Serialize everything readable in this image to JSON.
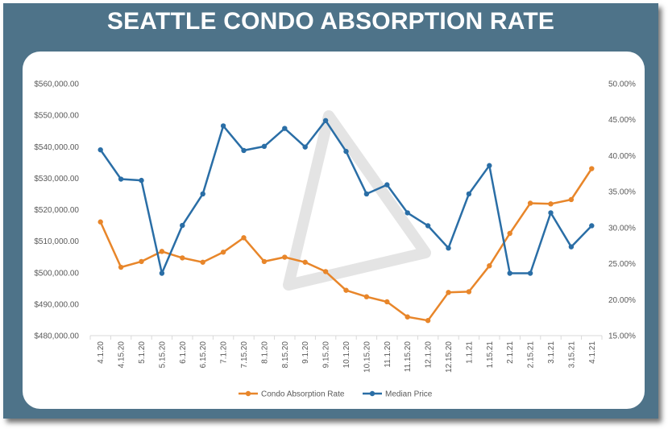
{
  "title": "SEATTLE CONDO ABSORPTION RATE",
  "chart_data": {
    "type": "line",
    "title": "",
    "categories": [
      "4.1.20",
      "4.15.20",
      "5.1.20",
      "5.15.20",
      "6.1.20",
      "6.15.20",
      "7.1.20",
      "7.15.20",
      "8.1.20",
      "8.15.20",
      "9.1.20",
      "9.15.20",
      "10.1.20",
      "10.15.20",
      "11.1.20",
      "11.15.20",
      "12.1.20",
      "12.15.20",
      "1.1.21",
      "1.15.21",
      "2.1.21",
      "2.15.21",
      "3.1.21",
      "3.15.21",
      "4.1.21"
    ],
    "left_axis": {
      "ylim": [
        480000,
        560000
      ],
      "ticks": [
        "$480,000.00",
        "$490,000.00",
        "$500,000.00",
        "$510,000.00",
        "$520,000.00",
        "$530,000.00",
        "$540,000.00",
        "$550,000.00",
        "$560,000.00"
      ]
    },
    "right_axis": {
      "ylim": [
        15,
        50
      ],
      "ticks": [
        "15.00%",
        "20.00%",
        "25.00%",
        "30.00%",
        "35.00%",
        "40.00%",
        "45.00%",
        "50.00%"
      ]
    },
    "grid": false,
    "legend_position": "bottom",
    "series": [
      {
        "name": "Condo Absorption Rate",
        "axis": "right",
        "color": "#e8862a",
        "values": [
          30.8,
          24.5,
          25.3,
          26.7,
          25.8,
          25.2,
          26.6,
          28.6,
          25.3,
          25.9,
          25.2,
          23.9,
          21.3,
          20.4,
          19.7,
          17.6,
          17.1,
          21.0,
          21.1,
          24.7,
          29.2,
          33.4,
          33.3,
          33.9,
          38.2
        ]
      },
      {
        "name": "Median Price",
        "axis": "left",
        "color": "#2a6ea6",
        "values": [
          539000,
          529700,
          529300,
          499800,
          515000,
          525000,
          546600,
          538800,
          540100,
          545800,
          539900,
          548300,
          538500,
          525000,
          527900,
          519000,
          514900,
          507800,
          525000,
          534000,
          499800,
          499800,
          519000,
          508200,
          514900
        ]
      }
    ]
  },
  "colors": {
    "frame": "#4e7389",
    "panel": "#ffffff",
    "axis_text": "#595959",
    "watermark": "#d9d9d9"
  }
}
